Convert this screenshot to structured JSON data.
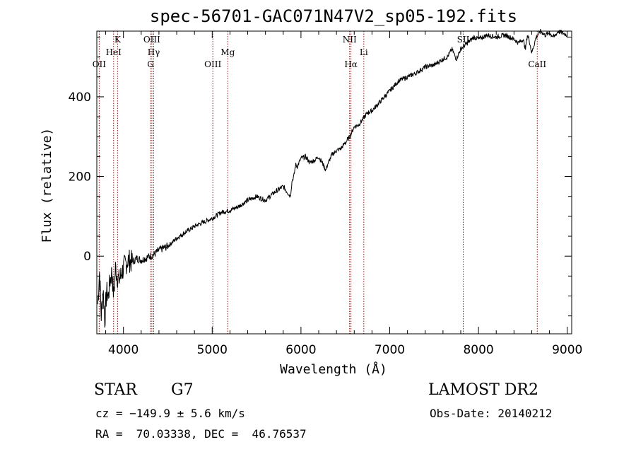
{
  "chart_data": {
    "type": "line",
    "title": "spec-56701-GAC071N47V2_sp05-192.fits",
    "xlabel": "Wavelength (Å)",
    "ylabel": "Flux (relative)",
    "xlim": [
      3700,
      9050
    ],
    "ylim": [
      -195,
      565
    ],
    "xticks": [
      {
        "value": 4000,
        "label": "4000"
      },
      {
        "value": 5000,
        "label": "5000"
      },
      {
        "value": 6000,
        "label": "6000"
      },
      {
        "value": 7000,
        "label": "7000"
      },
      {
        "value": 8000,
        "label": "8000"
      },
      {
        "value": 9000,
        "label": "9000"
      }
    ],
    "yticks": [
      {
        "value": 0,
        "label": "0"
      },
      {
        "value": 200,
        "label": "200"
      },
      {
        "value": 400,
        "label": "400"
      }
    ],
    "line_color": "#000000",
    "marker_color": "#8b1a1a",
    "lines": [
      {
        "name": "OII",
        "x": 3727,
        "row": 3
      },
      {
        "name": "HeI",
        "x": 3889,
        "row": 2
      },
      {
        "name": "K",
        "x": 3934,
        "row": 1
      },
      {
        "name": "OIII",
        "x": 4320,
        "row": 1
      },
      {
        "name": "Hγ",
        "x": 4341,
        "row": 2
      },
      {
        "name": "G",
        "x": 4305,
        "row": 3
      },
      {
        "name": "OIII",
        "x": 5007,
        "row": 3
      },
      {
        "name": "Mg",
        "x": 5175,
        "row": 2
      },
      {
        "name": "NII",
        "x": 6548,
        "row": 1
      },
      {
        "name": "Hα",
        "x": 6563,
        "row": 3
      },
      {
        "name": "Li",
        "x": 6708,
        "row": 2
      },
      {
        "name": "SII",
        "x": 7828,
        "row": 1
      },
      {
        "name": "CaII",
        "x": 8662,
        "row": 3
      }
    ],
    "series": [
      {
        "x": [
          3710,
          3730,
          3750,
          3770,
          3790,
          3810,
          3830,
          3850,
          3870,
          3890,
          3910,
          3930,
          3950,
          3970,
          4000,
          4050,
          4100,
          4150,
          4200,
          4250,
          4300,
          4350,
          4400,
          4450,
          4500,
          4600,
          4700,
          4800,
          4900,
          5000,
          5100,
          5200,
          5300,
          5400,
          5500,
          5600,
          5700,
          5800,
          5880,
          5900,
          5920,
          5940,
          5960,
          6000,
          6050,
          6100,
          6150,
          6200,
          6250,
          6280,
          6300,
          6350,
          6400,
          6450,
          6500,
          6550,
          6600,
          6650,
          6700,
          6750,
          6800,
          6900,
          7000,
          7100,
          7200,
          7300,
          7400,
          7500,
          7600,
          7650,
          7700,
          7750,
          7800,
          7850,
          7900,
          7950,
          8000,
          8100,
          8200,
          8300,
          8400,
          8450,
          8500,
          8530,
          8550,
          8570,
          8600,
          8650,
          8700,
          8750,
          8800,
          8850,
          8900,
          8950,
          9000
        ],
        "y": [
          -120,
          -40,
          -150,
          -80,
          -160,
          -90,
          -100,
          -60,
          -40,
          -100,
          -30,
          -50,
          -60,
          -50,
          -30,
          -10,
          -15,
          -5,
          -10,
          -5,
          0,
          5,
          15,
          20,
          25,
          45,
          60,
          75,
          85,
          95,
          110,
          115,
          125,
          140,
          150,
          140,
          160,
          175,
          150,
          190,
          200,
          230,
          225,
          245,
          250,
          235,
          240,
          250,
          230,
          215,
          230,
          255,
          265,
          270,
          285,
          300,
          325,
          330,
          345,
          360,
          365,
          390,
          415,
          440,
          450,
          460,
          475,
          480,
          495,
          500,
          520,
          495,
          520,
          530,
          540,
          550,
          545,
          555,
          550,
          555,
          545,
          535,
          545,
          520,
          555,
          545,
          510,
          550,
          565,
          555,
          560,
          550,
          565,
          560,
          555
        ]
      }
    ]
  },
  "info": {
    "object_class": "STAR",
    "subclass": "G7",
    "survey": "LAMOST DR2",
    "cz": "cz = −149.9 ± 5.6 km/s",
    "obs_date": "Obs-Date: 20140212",
    "coords": "RA =  70.03338, DEC =  46.76537"
  }
}
